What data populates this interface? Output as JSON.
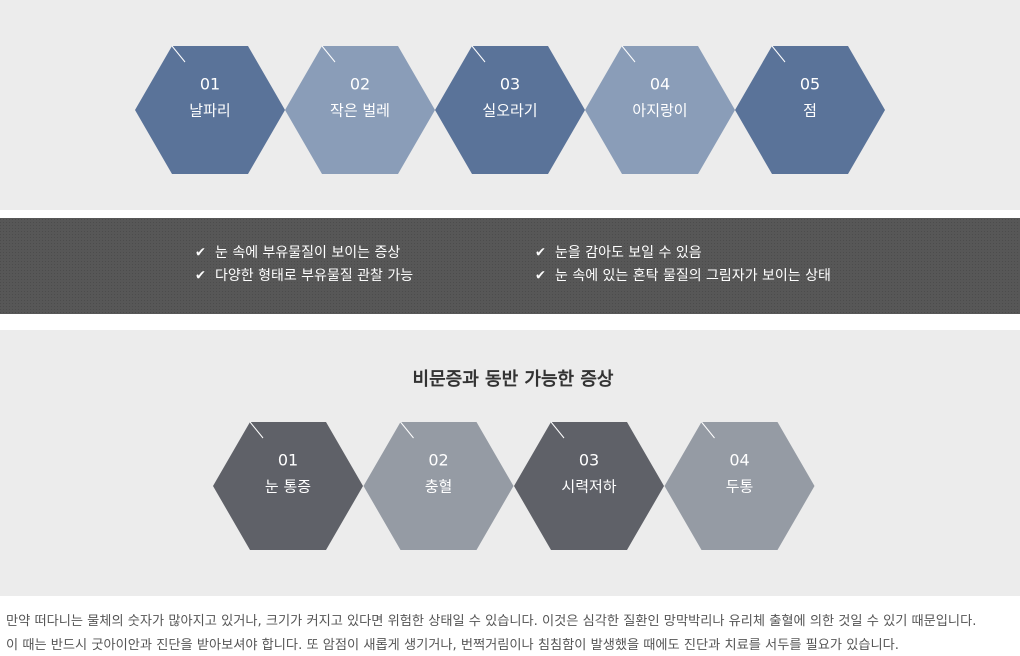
{
  "stages": [
    {
      "number": "01",
      "label": "날파리"
    },
    {
      "number": "02",
      "label": "작은 벌레"
    },
    {
      "number": "03",
      "label": "실오라기"
    },
    {
      "number": "04",
      "label": "아지랑이"
    },
    {
      "number": "05",
      "label": "점"
    }
  ],
  "features": [
    "눈 속에 부유물질이 보이는 증상",
    "다양한 형태로 부유물질 관찰 가능",
    "눈을 감아도 보일 수 있음",
    "눈 속에 있는 혼탁 물질의 그림자가 보이는 상태"
  ],
  "symptoms": {
    "title": "비문증과 동반 가능한 증상",
    "items": [
      {
        "number": "01",
        "label": "눈 통증"
      },
      {
        "number": "02",
        "label": "충혈"
      },
      {
        "number": "03",
        "label": "시력저하"
      },
      {
        "number": "04",
        "label": "두통"
      }
    ]
  },
  "paragraph": [
    "만약 떠다니는 물체의 숫자가 많아지고 있거나, 크기가 커지고 있다면 위험한 상태일 수 있습니다. 이것은 심각한 질환인 망막박리나 유리체 출혈에 의한 것일 수 있기 때문입니다.",
    "이 때는 반드시 굿아이안과 진단을 받아보셔야 합니다. 또 암점이 새롭게 생기거나, 번쩍거림이나 침침함이 발생했을 때에도 진단과 치료를 서두를 필요가 있습니다."
  ]
}
